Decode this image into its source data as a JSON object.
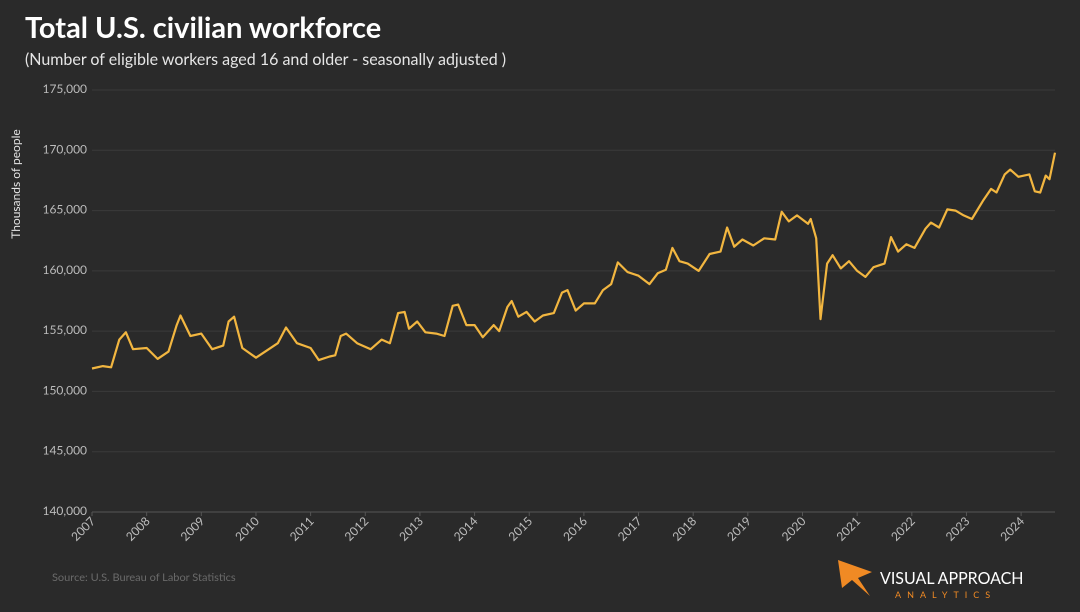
{
  "chart_data": {
    "type": "line",
    "title": "Total U.S. civilian workforce",
    "subtitle": "(Number of eligible workers aged 16 and older - seasonally adjusted )",
    "y_label": "Thousands of people",
    "source": "Source: U.S. Bureau of Labor Statistics",
    "logo": {
      "name": "VISUAL APPROACH",
      "tagline": "ANALYTICS"
    },
    "xlim": [
      2007,
      2024.62
    ],
    "xticks": [
      2007,
      2008,
      2009,
      2010,
      2011,
      2012,
      2013,
      2014,
      2015,
      2016,
      2017,
      2018,
      2019,
      2020,
      2021,
      2022,
      2023,
      2024
    ],
    "ylim": [
      140000,
      175000
    ],
    "yticks": [
      {
        "value": 140000,
        "label": "140,000"
      },
      {
        "value": 145000,
        "label": "145,000"
      },
      {
        "value": 150000,
        "label": "150,000"
      },
      {
        "value": 155000,
        "label": "155,000"
      },
      {
        "value": 160000,
        "label": "160,000"
      },
      {
        "value": 165000,
        "label": "165,000"
      },
      {
        "value": 170000,
        "label": "170,000"
      },
      {
        "value": 175000,
        "label": "175,000"
      }
    ],
    "grid": true,
    "x": [
      2007.0,
      2007.2,
      2007.35,
      2007.5,
      2007.62,
      2007.75,
      2008.0,
      2008.2,
      2008.4,
      2008.55,
      2008.62,
      2008.8,
      2009.0,
      2009.2,
      2009.4,
      2009.5,
      2009.6,
      2009.75,
      2010.0,
      2010.2,
      2010.4,
      2010.55,
      2010.75,
      2011.0,
      2011.15,
      2011.35,
      2011.45,
      2011.55,
      2011.65,
      2011.85,
      2012.1,
      2012.3,
      2012.45,
      2012.6,
      2012.72,
      2012.8,
      2012.95,
      2013.1,
      2013.3,
      2013.45,
      2013.6,
      2013.7,
      2013.85,
      2014.0,
      2014.15,
      2014.35,
      2014.45,
      2014.6,
      2014.68,
      2014.8,
      2014.95,
      2015.1,
      2015.25,
      2015.45,
      2015.6,
      2015.7,
      2015.85,
      2016.0,
      2016.2,
      2016.35,
      2016.5,
      2016.62,
      2016.8,
      2017.0,
      2017.2,
      2017.35,
      2017.5,
      2017.62,
      2017.75,
      2017.9,
      2018.1,
      2018.3,
      2018.5,
      2018.62,
      2018.75,
      2018.9,
      2019.1,
      2019.3,
      2019.5,
      2019.62,
      2019.75,
      2019.9,
      2020.1,
      2020.15,
      2020.25,
      2020.33,
      2020.45,
      2020.55,
      2020.7,
      2020.85,
      2021.0,
      2021.15,
      2021.3,
      2021.5,
      2021.62,
      2021.75,
      2021.9,
      2022.05,
      2022.25,
      2022.35,
      2022.5,
      2022.65,
      2022.8,
      2022.95,
      2023.1,
      2023.3,
      2023.45,
      2023.55,
      2023.7,
      2023.8,
      2023.95,
      2024.15,
      2024.25,
      2024.35,
      2024.45,
      2024.52,
      2024.62
    ],
    "series": [
      {
        "name": "Civilian workforce",
        "color": "#f2b640",
        "values": [
          151900,
          152100,
          152000,
          154300,
          154900,
          153500,
          153600,
          152700,
          153300,
          155500,
          156300,
          154600,
          154800,
          153500,
          153800,
          155800,
          156200,
          153600,
          152800,
          153400,
          154000,
          155300,
          154000,
          153600,
          152600,
          152900,
          153000,
          154600,
          154800,
          154000,
          153500,
          154300,
          154000,
          156500,
          156600,
          155200,
          155800,
          154900,
          154800,
          154600,
          157100,
          157200,
          155500,
          155500,
          154500,
          155500,
          155000,
          157000,
          157500,
          156200,
          156600,
          155800,
          156300,
          156500,
          158200,
          158400,
          156700,
          157300,
          157300,
          158400,
          158900,
          160700,
          159900,
          159600,
          158900,
          159800,
          160100,
          161900,
          160800,
          160600,
          160000,
          161400,
          161600,
          163600,
          162000,
          162600,
          162100,
          162700,
          162600,
          164900,
          164100,
          164600,
          163900,
          164300,
          162700,
          156000,
          160600,
          161300,
          160200,
          160800,
          160000,
          159500,
          160300,
          160600,
          162800,
          161600,
          162200,
          161900,
          163500,
          164000,
          163600,
          165100,
          165000,
          164600,
          164300,
          165800,
          166800,
          166500,
          168000,
          168400,
          167800,
          168000,
          166600,
          166500,
          167900,
          167600,
          169800
        ]
      }
    ]
  }
}
